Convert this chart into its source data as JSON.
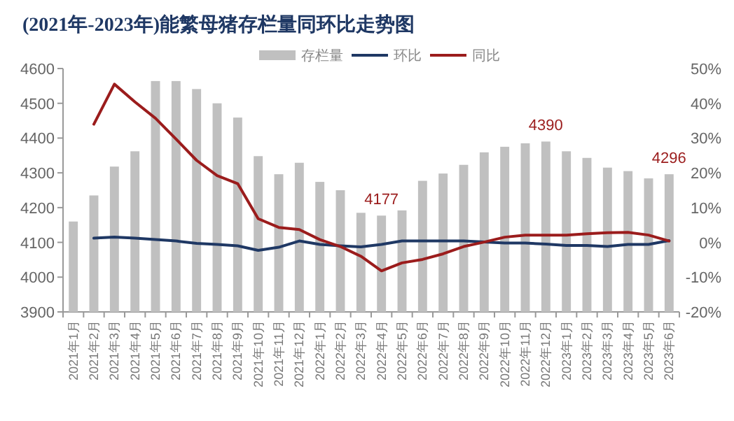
{
  "chart_data": {
    "type": "bar",
    "title": "(2021年-2023年)能繁母猪存栏量同环比走势图",
    "categories": [
      "2021年1月",
      "2021年2月",
      "2021年3月",
      "2021年4月",
      "2021年5月",
      "2021年6月",
      "2021年7月",
      "2021年8月",
      "2021年9月",
      "2021年10月",
      "2021年11月",
      "2021年12月",
      "2022年1月",
      "2022年2月",
      "2022年3月",
      "2022年4月",
      "2022年5月",
      "2022年6月",
      "2022年7月",
      "2022年8月",
      "2022年9月",
      "2022年10月",
      "2022年11月",
      "2022年12月",
      "2023年1月",
      "2023年2月",
      "2023年3月",
      "2023年4月",
      "2023年5月",
      "2023年6月"
    ],
    "series": [
      {
        "name": "存栏量",
        "color": "#c0c0c0",
        "values": [
          4160,
          4235,
          4318,
          4362,
          4564,
          4564,
          4541,
          4500,
          4459,
          4348,
          4296,
          4329,
          4274,
          4250,
          4185,
          4177,
          4192,
          4277,
          4298,
          4323,
          4359,
          4375,
          4385,
          4390,
          4362,
          4343,
          4315,
          4305,
          4284,
          4296
        ]
      },
      {
        "name": "环比",
        "type": "line",
        "axis": "y2",
        "color": "#1f3864",
        "values": [
          null,
          1.2,
          1.5,
          1.2,
          0.8,
          0.4,
          -0.3,
          -0.6,
          -1,
          -2.3,
          -1.4,
          0.4,
          -0.6,
          -1,
          -1.3,
          -0.6,
          0.4,
          0.4,
          0.4,
          0.4,
          0.1,
          -0.2,
          -0.2,
          -0.5,
          -0.9,
          -0.9,
          -1.2,
          -0.6,
          -0.6,
          0.5
        ]
      },
      {
        "name": "同比",
        "type": "line",
        "axis": "y2",
        "color": "#9b1c1c",
        "values": [
          null,
          34,
          45.5,
          40.4,
          35.7,
          29.7,
          23.6,
          19.2,
          16.9,
          6.8,
          4.3,
          3.7,
          0.8,
          -1.2,
          -4,
          -8.2,
          -5.9,
          -4.9,
          -3.3,
          -1.2,
          0.1,
          1.5,
          2.1,
          2.1,
          2.1,
          2.5,
          2.8,
          2.9,
          2.1,
          0.4
        ]
      }
    ],
    "ylim": [
      3900,
      4600
    ],
    "yticks": [
      3900,
      4000,
      4100,
      4200,
      4300,
      4400,
      4500,
      4600
    ],
    "y2lim": [
      -20,
      50
    ],
    "y2ticks": [
      {
        "value": -20,
        "label": "-20%"
      },
      {
        "value": -10,
        "label": "-10%"
      },
      {
        "value": 0,
        "label": "0%"
      },
      {
        "value": 10,
        "label": "10%"
      },
      {
        "value": 20,
        "label": "20%"
      },
      {
        "value": 30,
        "label": "30%"
      },
      {
        "value": 40,
        "label": "40%"
      },
      {
        "value": 50,
        "label": "50%"
      }
    ],
    "annotations": [
      {
        "text": "4177",
        "x": "2022年4月",
        "y": 4177
      },
      {
        "text": "4390",
        "x": "2022年12月",
        "y": 4390
      },
      {
        "text": "4296",
        "x": "2023年6月",
        "y": 4296
      }
    ],
    "legend": "top",
    "grid": false
  }
}
